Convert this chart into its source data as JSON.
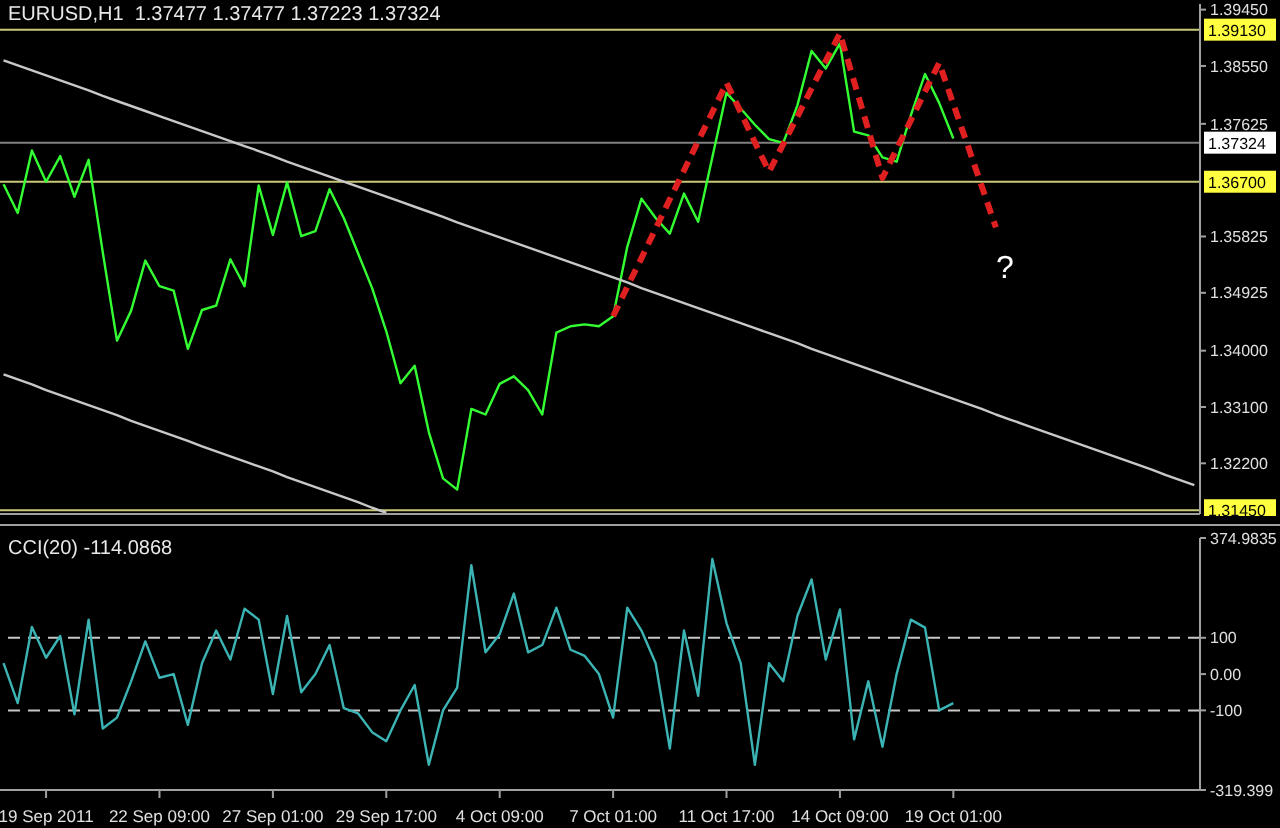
{
  "chart_data": [
    {
      "type": "line",
      "title": "EURUSD,H1  1.37477 1.37477 1.37223 1.37324",
      "ylim": [
        1.3139,
        1.3954
      ],
      "tick_labels": "y",
      "grid": false,
      "marker": "none",
      "categories": [
        null,
        null,
        null,
        null,
        null,
        null,
        null,
        null,
        null,
        null,
        null,
        null,
        null,
        null,
        null,
        null,
        null,
        null,
        null,
        null,
        null,
        null,
        null,
        null,
        null,
        null,
        null,
        null,
        null,
        null,
        null,
        null,
        null,
        null,
        null,
        null,
        null,
        null,
        null,
        null,
        null,
        null,
        null,
        null,
        null,
        null,
        null,
        null,
        null,
        null,
        null,
        null,
        null,
        null,
        null,
        null,
        null,
        null,
        null,
        null,
        null,
        null,
        null,
        null,
        null,
        null,
        null,
        null,
        null,
        null,
        null,
        null,
        null,
        null,
        null,
        null,
        null,
        null,
        null,
        null,
        null,
        null,
        null,
        null,
        null
      ],
      "yticks": [
        {
          "value": 1.3945,
          "label": "1.39450"
        },
        {
          "value": 1.3855,
          "label": "1.38550"
        },
        {
          "value": 1.37625,
          "label": "1.37625"
        },
        {
          "value": 1.35825,
          "label": "1.35825"
        },
        {
          "value": 1.34925,
          "label": "1.34925"
        },
        {
          "value": 1.34,
          "label": "1.34000"
        },
        {
          "value": 1.331,
          "label": "1.33100"
        },
        {
          "value": 1.322,
          "label": "1.32200"
        }
      ],
      "ref_lines": [
        {
          "axis": "y",
          "value": 1.3913,
          "label": "1.39130",
          "color": "#c8c878"
        },
        {
          "axis": "y",
          "value": 1.367,
          "label": "1.36700",
          "color": "#c8c878"
        },
        {
          "axis": "y",
          "value": 1.3145,
          "label": "1.31450",
          "color": "#c8c878"
        },
        {
          "axis": "y",
          "value": 1.37324,
          "label": "1.37324",
          "color": "#808080"
        }
      ],
      "annotations": [
        "?"
      ],
      "series": [
        {
          "type": "line",
          "color": "#33ff33",
          "values": [
            1.3666,
            1.362,
            1.372,
            1.367,
            1.3711,
            1.3646,
            1.3705,
            1.3557,
            1.3416,
            1.3464,
            1.3544,
            1.3503,
            1.3496,
            1.3403,
            1.3465,
            1.3472,
            1.3546,
            1.3503,
            1.3664,
            1.3585,
            1.3669,
            1.3583,
            1.3591,
            1.3658,
            1.3612,
            1.3556,
            1.35,
            1.3431,
            1.3348,
            1.3376,
            1.327,
            1.3196,
            1.3178,
            1.3307,
            1.3298,
            1.3347,
            1.3359,
            1.3337,
            1.3298,
            1.3429,
            1.3439,
            1.3442,
            1.3439,
            1.3455,
            1.3566,
            1.3643,
            1.3612,
            1.3587,
            1.3651,
            1.3606,
            1.3709,
            1.3812,
            1.3787,
            1.3761,
            1.3738,
            1.3732,
            1.3792,
            1.3879,
            1.3851,
            1.3891,
            1.375,
            1.3744,
            1.3709,
            1.3702,
            1.3776,
            1.3842,
            1.3796,
            1.3739,
            null,
            null,
            null,
            null,
            null,
            null,
            null,
            null,
            null,
            null,
            null,
            null,
            null,
            null,
            null,
            null,
            null
          ]
        },
        {
          "type": "line",
          "color": "#c8c8c8",
          "values": [
            1.3864,
            1.3856,
            1.3848,
            1.384,
            1.3832,
            1.3824,
            1.3816,
            1.3807,
            1.3799,
            1.3791,
            1.3783,
            1.3775,
            1.3767,
            1.3759,
            1.3751,
            1.3743,
            1.3735,
            1.3727,
            1.3719,
            1.3711,
            1.3702,
            1.3694,
            1.3686,
            1.3678,
            1.367,
            1.3662,
            1.3654,
            1.3646,
            1.3638,
            1.363,
            1.3622,
            1.3614,
            1.3605,
            1.3597,
            1.3589,
            1.3581,
            1.3573,
            1.3565,
            1.3557,
            1.3549,
            1.3541,
            1.3533,
            1.3525,
            1.3517,
            1.3509,
            1.35,
            1.3492,
            1.3484,
            1.3476,
            1.3468,
            1.346,
            1.3452,
            1.3444,
            1.3436,
            1.3428,
            1.342,
            1.3412,
            1.3403,
            1.3395,
            1.3387,
            1.3379,
            1.3371,
            1.3363,
            1.3355,
            1.3347,
            1.3339,
            1.3331,
            1.3323,
            1.3315,
            1.3307,
            1.3298,
            1.329,
            1.3282,
            1.3274,
            1.3266,
            1.3258,
            1.325,
            1.3242,
            1.3234,
            1.3226,
            1.3218,
            1.321,
            1.3201,
            1.3193,
            1.3185
          ]
        },
        {
          "type": "line",
          "color": "#c8c8c8",
          "values": [
            1.3362,
            1.3354,
            1.3346,
            1.3337,
            1.3329,
            1.3321,
            1.3313,
            1.3305,
            1.3297,
            1.3288,
            1.328,
            1.3272,
            1.3264,
            1.3256,
            1.3247,
            1.3239,
            1.3231,
            1.3223,
            1.3215,
            1.3207,
            1.3198,
            1.319,
            1.3182,
            1.3174,
            1.3166,
            1.3158,
            1.3149,
            1.3141,
            null,
            null,
            null,
            null,
            null,
            null,
            null,
            null,
            null,
            null,
            null,
            null,
            null,
            null,
            null,
            null,
            null,
            null,
            null,
            null,
            null,
            null,
            null,
            null,
            null,
            null,
            null,
            null,
            null,
            null,
            null,
            null,
            null,
            null,
            null,
            null,
            null,
            null,
            null,
            null,
            null,
            null,
            null,
            null,
            null,
            null,
            null,
            null,
            null,
            null,
            null,
            null,
            null,
            null,
            null,
            null,
            null
          ]
        },
        {
          "type": "line",
          "color": "#e02020",
          "line_style": "dashed",
          "values": [
            null,
            null,
            null,
            null,
            null,
            null,
            null,
            null,
            null,
            null,
            null,
            null,
            null,
            null,
            null,
            null,
            null,
            null,
            null,
            null,
            null,
            null,
            null,
            null,
            null,
            null,
            null,
            null,
            null,
            null,
            null,
            null,
            null,
            null,
            null,
            null,
            null,
            null,
            null,
            null,
            null,
            null,
            null,
            1.3455,
            1.3502,
            1.3548,
            1.3595,
            1.3642,
            1.3688,
            1.3735,
            1.3781,
            1.3828,
            1.3781,
            1.3733,
            1.3686,
            1.373,
            1.3774,
            1.3819,
            1.3863,
            1.3907,
            1.383,
            1.3753,
            1.3676,
            1.3722,
            1.3768,
            1.3814,
            1.386,
            1.3794,
            1.3729,
            1.3663,
            1.3597,
            null,
            null,
            null,
            null,
            null,
            null,
            null,
            null,
            null,
            null,
            null,
            null,
            null,
            null
          ]
        }
      ]
    },
    {
      "type": "line",
      "title": "CCI(20) -114.0868",
      "ylim": [
        -319.399,
        374.9835
      ],
      "grid": false,
      "marker": "none",
      "categories": [
        null,
        null,
        null,
        "19 Sep 2011",
        null,
        null,
        null,
        null,
        null,
        null,
        null,
        "22 Sep 09:00",
        null,
        null,
        null,
        null,
        null,
        null,
        null,
        "27 Sep 01:00",
        null,
        null,
        null,
        null,
        null,
        null,
        null,
        "29 Sep 17:00",
        null,
        null,
        null,
        null,
        null,
        null,
        null,
        "4 Oct 09:00",
        null,
        null,
        null,
        null,
        null,
        null,
        null,
        "7 Oct 01:00",
        null,
        null,
        null,
        null,
        null,
        null,
        null,
        "11 Oct 17:00",
        null,
        null,
        null,
        null,
        null,
        null,
        null,
        "14 Oct 09:00",
        null,
        null,
        null,
        null,
        null,
        null,
        null,
        "19 Oct 01:00",
        null,
        null,
        null,
        null,
        null,
        null,
        null,
        null,
        null,
        null,
        null,
        null,
        null,
        null,
        null,
        null,
        null
      ],
      "yticks": [
        {
          "value": 374.9835,
          "label": "374.9835"
        },
        100,
        {
          "value": 0,
          "label": "0.00"
        },
        -100,
        {
          "value": -319.399,
          "label": "-319.399"
        }
      ],
      "ref_lines": [
        {
          "axis": "y",
          "value": 100,
          "color": "#c8c8c8",
          "line_style": "dashed"
        },
        {
          "axis": "y",
          "value": -100,
          "color": "#c8c8c8",
          "line_style": "dashed"
        }
      ],
      "series": [
        {
          "type": "line",
          "color": "#3cb4b4",
          "values": [
            30,
            -80,
            130,
            45,
            105,
            -111,
            150,
            -150,
            -120,
            -20,
            90,
            -10,
            0,
            -140,
            30,
            120,
            40,
            180,
            150,
            -55,
            160,
            -50,
            0,
            80,
            -94,
            -108,
            -160,
            -185,
            -100,
            -30,
            -250,
            -100,
            -37,
            300,
            60,
            110,
            222,
            60,
            80,
            183,
            67,
            50,
            0,
            -120,
            183,
            120,
            30,
            -205,
            120,
            -60,
            317,
            140,
            30,
            -250,
            30,
            -20,
            160,
            261,
            40,
            178,
            -180,
            -20,
            -200,
            0,
            150,
            128,
            -100,
            -80,
            null,
            null,
            null,
            null,
            null,
            null,
            null,
            null,
            null,
            null,
            null,
            null,
            null,
            null,
            null,
            null,
            null
          ]
        }
      ]
    }
  ]
}
